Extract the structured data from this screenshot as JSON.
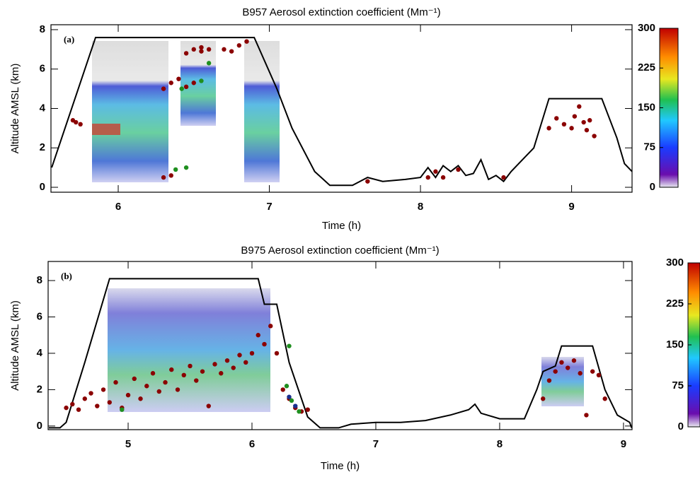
{
  "chart_data": [
    {
      "type": "line",
      "title": "B957 Aerosol extinction coefficient (Mm⁻¹)",
      "panel_label": "(a)",
      "x_label": "Time (h)",
      "y_label": "Altitude AMSL (km)",
      "xlim": [
        5.555,
        9.4
      ],
      "ylim": [
        -0.25,
        8.25
      ],
      "xticks": [
        6,
        7,
        8,
        9
      ],
      "yticks": [
        0,
        2,
        4,
        6,
        8
      ],
      "series": [
        {
          "type": "line",
          "color": "#000000",
          "x": [
            5.56,
            5.85,
            6.9,
            7.05,
            7.15,
            7.3,
            7.4,
            7.55,
            7.65,
            7.75,
            7.9,
            8.0,
            8.05,
            8.1,
            8.15,
            8.2,
            8.25,
            8.3,
            8.35,
            8.4,
            8.45,
            8.5,
            8.55,
            8.6,
            8.7,
            8.75,
            8.85,
            9.2,
            9.3,
            9.35,
            9.4
          ],
          "values": [
            1.0,
            7.6,
            7.6,
            5.0,
            3.0,
            0.8,
            0.1,
            0.1,
            0.5,
            0.3,
            0.4,
            0.5,
            1.0,
            0.5,
            1.1,
            0.8,
            1.1,
            0.6,
            0.7,
            1.4,
            0.4,
            0.6,
            0.3,
            0.8,
            1.6,
            2.0,
            4.5,
            4.5,
            2.5,
            1.2,
            0.8
          ]
        },
        {
          "type": "scatter",
          "color": "#8b0000",
          "x": [
            5.7,
            5.72,
            5.75,
            6.3,
            6.35,
            6.4,
            6.45,
            6.5,
            6.55,
            6.6,
            6.45,
            6.5,
            6.55,
            6.7,
            6.75,
            6.8,
            6.85,
            6.3,
            6.35,
            7.65,
            8.05,
            8.1,
            8.15,
            8.25,
            8.55,
            8.85,
            8.9,
            8.95,
            9.0,
            9.02,
            9.05,
            9.08,
            9.1,
            9.12,
            9.15
          ],
          "values": [
            3.4,
            3.3,
            3.2,
            5.0,
            5.3,
            5.5,
            5.1,
            5.3,
            6.9,
            7.0,
            6.8,
            7.0,
            7.1,
            7.0,
            6.9,
            7.2,
            7.4,
            0.5,
            0.6,
            0.3,
            0.5,
            0.8,
            0.5,
            0.9,
            0.5,
            3.0,
            3.5,
            3.2,
            3.0,
            3.6,
            4.1,
            3.3,
            2.9,
            3.4,
            2.6
          ]
        },
        {
          "type": "scatter",
          "color": "#1f8f1f",
          "x": [
            6.38,
            6.45,
            6.55,
            6.6,
            6.42
          ],
          "values": [
            0.9,
            1.0,
            5.4,
            6.3,
            5.0
          ]
        }
      ],
      "colorbar": {
        "lim": [
          0,
          300
        ],
        "ticks": [
          0,
          75,
          150,
          225,
          300
        ]
      }
    },
    {
      "type": "line",
      "title": "B975 Aerosol extinction coefficient (Mm⁻¹)",
      "panel_label": "(b)",
      "x_label": "Time (h)",
      "y_label": "Altitude AMSL (km)",
      "xlim": [
        4.354,
        9.069
      ],
      "ylim": [
        -0.2,
        9.05
      ],
      "xticks": [
        5,
        6,
        7,
        8,
        9
      ],
      "yticks": [
        0,
        2,
        4,
        6,
        8
      ],
      "series": [
        {
          "type": "line",
          "color": "#000000",
          "x": [
            4.36,
            4.45,
            4.5,
            4.65,
            4.85,
            6.05,
            6.1,
            6.2,
            6.3,
            6.45,
            6.55,
            6.7,
            6.8,
            7.0,
            7.2,
            7.4,
            7.6,
            7.75,
            7.8,
            7.85,
            8.0,
            8.2,
            8.3,
            8.35,
            8.45,
            8.5,
            8.75,
            8.85,
            8.95,
            9.05,
            9.065
          ],
          "values": [
            -0.1,
            -0.1,
            0.2,
            3.5,
            8.1,
            8.1,
            6.7,
            6.7,
            3.5,
            0.5,
            -0.1,
            -0.1,
            0.1,
            0.2,
            0.2,
            0.3,
            0.6,
            0.9,
            1.2,
            0.7,
            0.4,
            0.4,
            2.0,
            3.0,
            3.3,
            4.4,
            4.4,
            2.0,
            0.6,
            0.2,
            -0.1
          ]
        },
        {
          "type": "scatter",
          "color": "#8b0000",
          "x": [
            4.5,
            4.55,
            4.6,
            4.65,
            4.7,
            4.75,
            4.8,
            4.85,
            4.9,
            4.95,
            5.0,
            5.05,
            5.1,
            5.15,
            5.2,
            5.25,
            5.3,
            5.35,
            5.4,
            5.45,
            5.5,
            5.55,
            5.6,
            5.65,
            5.7,
            5.75,
            5.8,
            5.85,
            5.9,
            5.95,
            6.0,
            6.05,
            6.1,
            6.15,
            6.2,
            6.25,
            6.3,
            6.35,
            6.4,
            6.45,
            8.35,
            8.4,
            8.45,
            8.5,
            8.55,
            8.6,
            8.65,
            8.7,
            8.75,
            8.8,
            8.85
          ],
          "values": [
            1.0,
            1.2,
            0.9,
            1.5,
            1.8,
            1.1,
            2.0,
            1.3,
            2.4,
            1.0,
            1.7,
            2.6,
            1.5,
            2.2,
            2.9,
            1.9,
            2.4,
            3.1,
            2.0,
            2.8,
            3.3,
            2.5,
            3.0,
            1.1,
            3.4,
            2.9,
            3.6,
            3.2,
            3.9,
            3.5,
            4.0,
            5.0,
            4.5,
            5.5,
            4.0,
            2.0,
            1.5,
            1.0,
            0.8,
            0.9,
            1.5,
            2.5,
            3.0,
            3.5,
            3.2,
            3.6,
            2.9,
            0.6,
            3.0,
            2.8,
            1.5
          ]
        },
        {
          "type": "scatter",
          "color": "#1f8f1f",
          "x": [
            6.28,
            6.32,
            6.38,
            6.3,
            4.95
          ],
          "values": [
            2.2,
            1.4,
            0.8,
            4.4,
            0.9
          ]
        },
        {
          "type": "scatter",
          "color": "#1a2f8f",
          "x": [
            6.3,
            6.35
          ],
          "values": [
            1.6,
            1.1
          ]
        }
      ],
      "colorbar": {
        "lim": [
          0,
          300
        ],
        "ticks": [
          0,
          75,
          150,
          225,
          300
        ]
      }
    }
  ]
}
